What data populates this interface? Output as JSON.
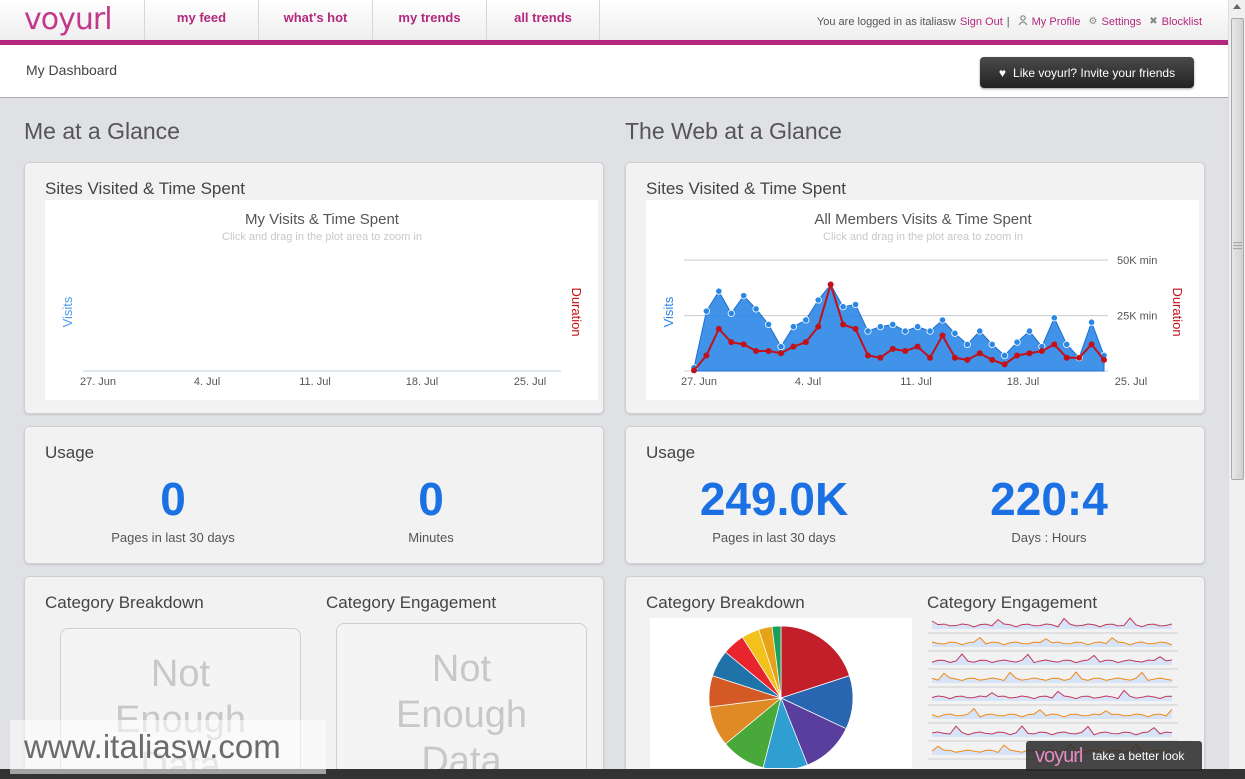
{
  "brand": {
    "logo": "voyurl"
  },
  "nav": {
    "items": [
      {
        "label": "my feed"
      },
      {
        "label": "what's hot"
      },
      {
        "label": "my trends"
      },
      {
        "label": "all trends"
      }
    ]
  },
  "userbar": {
    "logged_in_text": "You are logged in as italiasw",
    "sign_out": "Sign Out",
    "separator": "|",
    "my_profile": "My Profile",
    "settings": "Settings",
    "blocklist": "Blocklist",
    "icons": [
      "person-icon",
      "gear-icon",
      "cross-icon"
    ]
  },
  "subheader": {
    "breadcrumb": "My Dashboard",
    "invite_button": "Like voyurl? Invite your friends",
    "invite_icon": "heart-icon"
  },
  "sections": {
    "me": "Me at a Glance",
    "web": "The Web at a Glance"
  },
  "me": {
    "visits_panel_title": "Sites Visited & Time Spent",
    "usage_title": "Usage",
    "pages_value": "0",
    "pages_label": "Pages in last 30 days",
    "minutes_value": "0",
    "minutes_label": "Minutes",
    "breakdown_title": "Category Breakdown",
    "engagement_title": "Category Engagement",
    "nodata_lines": [
      "Not",
      "Enough",
      "Data"
    ]
  },
  "web": {
    "visits_panel_title": "Sites Visited & Time Spent",
    "usage_title": "Usage",
    "pages_value": "249.0K",
    "pages_label": "Pages in last 30 days",
    "time_value": "220:4",
    "time_label": "Days : Hours",
    "breakdown_title": "Category Breakdown",
    "engagement_title": "Category Engagement"
  },
  "chart_data": [
    {
      "type": "area",
      "title": "My Visits & Time Spent",
      "subtitle": "Click and drag in the plot area to zoom in",
      "ylabel_left": "Visits",
      "ylabel_right": "Duration",
      "x_ticks": [
        "27. Jun",
        "4. Jul",
        "11. Jul",
        "18. Jul",
        "25. Jul"
      ],
      "x_range": [
        0,
        32
      ],
      "series": [
        {
          "values": []
        },
        {
          "values": []
        }
      ],
      "colors": {
        "visits": "#4f9ce8",
        "duration": "#cc1111"
      }
    },
    {
      "type": "area",
      "title": "All Members Visits & Time Spent",
      "subtitle": "Click and drag in the plot area to zoom in",
      "ylabel_left": "Visits",
      "ylabel_right": "Duration",
      "x_ticks": [
        "27. Jun",
        "4. Jul",
        "11. Jul",
        "18. Jul",
        "25. Jul"
      ],
      "x_range": [
        0,
        32
      ],
      "y_right_ticks": [
        "25K min",
        "50K min"
      ],
      "y_right_range": [
        0,
        60000
      ],
      "grid": true,
      "series": [
        {
          "values": [
            1500,
            27000,
            36000,
            26000,
            34000,
            28000,
            21000,
            11000,
            20000,
            23000,
            32000,
            39000,
            29000,
            30000,
            18000,
            20000,
            21000,
            18000,
            20000,
            18000,
            23000,
            17000,
            12000,
            18000,
            12000,
            7000,
            13000,
            18000,
            11000,
            24000,
            12000,
            6000,
            22000,
            7000
          ]
        },
        {
          "values": [
            300,
            7000,
            19000,
            13000,
            12000,
            9000,
            9000,
            8000,
            11000,
            13000,
            20000,
            39000,
            21000,
            19000,
            7000,
            6000,
            10000,
            9000,
            11000,
            6000,
            16000,
            6000,
            5000,
            8000,
            5000,
            3000,
            7000,
            8000,
            9000,
            12000,
            6000,
            6000,
            12000,
            5000
          ]
        }
      ],
      "colors": {
        "visits": "#2b87e6",
        "duration": "#c2111a"
      }
    },
    {
      "type": "pie",
      "values": [
        20,
        12,
        12,
        10,
        10,
        9,
        7,
        6,
        5,
        4,
        3,
        2
      ],
      "colors": [
        "#c21f2b",
        "#2a65b2",
        "#5a3e9e",
        "#2f9fd2",
        "#49a83a",
        "#e08a26",
        "#d35a24",
        "#1f73a8",
        "#e8242c",
        "#f3c11c",
        "#e7a21a",
        "#1a9f5a"
      ]
    },
    {
      "type": "line",
      "sparklines": 8,
      "colors": {
        "line_odd": "#c2385b",
        "line_even": "#f08a18",
        "fill": "#d7e3f6"
      }
    }
  ],
  "watermark": {
    "site": "www.italiasw.com",
    "brand": "voyurl",
    "tagline": "take a better look"
  }
}
